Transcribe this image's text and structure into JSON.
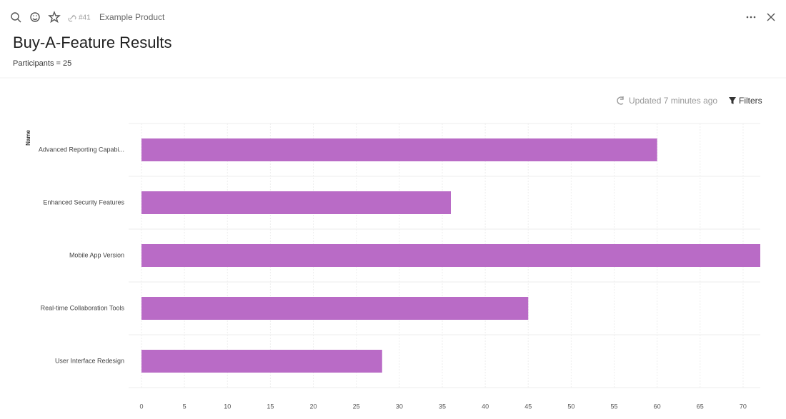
{
  "toolbar": {
    "ref": "#41",
    "product": "Example Product"
  },
  "header": {
    "title": "Buy-A-Feature Results",
    "subtitle": "Participants = 25"
  },
  "actions": {
    "updated": "Updated 7 minutes ago",
    "filters": "Filters"
  },
  "chart_data": {
    "type": "hbar",
    "y_label": "Name",
    "categories": [
      "Advanced Reporting Capabi...",
      "Enhanced Security Features",
      "Mobile App Version",
      "Real-time Collaboration Tools",
      "User Interface Redesign"
    ],
    "values": [
      60,
      36,
      72,
      45,
      28
    ],
    "color": "#b96bc6",
    "xlim": [
      0,
      72
    ],
    "xticks": [
      0,
      5,
      10,
      15,
      20,
      25,
      30,
      35,
      40,
      45,
      50,
      55,
      60,
      65,
      70
    ],
    "grid": true
  }
}
